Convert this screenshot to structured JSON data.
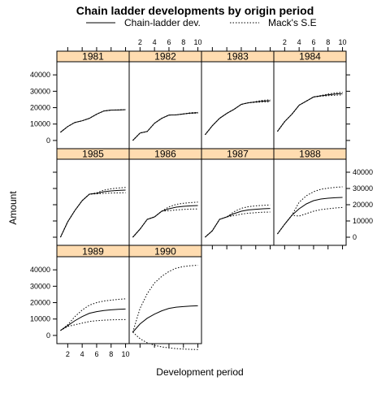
{
  "chart_data": {
    "type": "line",
    "title": "Chain ladder developments by origin period",
    "xlabel": "Development period",
    "ylabel": "Amount",
    "legend": {
      "placement": "top",
      "entries": [
        {
          "label": "Chain-ladder dev.",
          "line": "solid"
        },
        {
          "label": "Mack's S.E",
          "line": "dotted"
        }
      ]
    },
    "xlim": [
      0.5,
      10.5
    ],
    "ylim": [
      -5000,
      48000
    ],
    "x_ticks": [
      2,
      4,
      6,
      8,
      10
    ],
    "y_ticks": [
      0,
      10000,
      20000,
      30000,
      40000
    ],
    "strip_color": "#ffdcb0",
    "panels": [
      {
        "origin": "1981",
        "cl": [
          5000,
          8500,
          11000,
          12000,
          13500,
          16000,
          18000,
          18500,
          18600,
          18800
        ],
        "lower": [
          5000,
          8500,
          11000,
          12000,
          13500,
          16000,
          18000,
          18500,
          18600,
          18800
        ],
        "upper": [
          5000,
          8500,
          11000,
          12000,
          13500,
          16000,
          18000,
          18500,
          18600,
          18800
        ]
      },
      {
        "origin": "1982",
        "cl": [
          0,
          4500,
          5500,
          10500,
          13500,
          15500,
          15600,
          16200,
          16700,
          16900
        ],
        "lower": [
          0,
          4500,
          5500,
          10500,
          13500,
          15500,
          15600,
          16200,
          16500,
          16700
        ],
        "upper": [
          0,
          4500,
          5500,
          10500,
          13500,
          15500,
          15600,
          16200,
          16900,
          17100
        ]
      },
      {
        "origin": "1983",
        "cl": [
          3500,
          9000,
          13500,
          16500,
          19000,
          22000,
          23000,
          23500,
          24000,
          24200
        ],
        "lower": [
          3500,
          9000,
          13500,
          16500,
          19000,
          22000,
          23000,
          23300,
          23500,
          23600
        ],
        "upper": [
          3500,
          9000,
          13500,
          16500,
          19000,
          22000,
          23000,
          23700,
          24500,
          24800
        ]
      },
      {
        "origin": "1984",
        "cl": [
          5500,
          11500,
          16000,
          21500,
          24000,
          26500,
          27200,
          27800,
          28300,
          28600
        ],
        "lower": [
          5500,
          11500,
          16000,
          21500,
          24000,
          26500,
          27000,
          27300,
          27600,
          27800
        ],
        "upper": [
          5500,
          11500,
          16000,
          21500,
          24000,
          26500,
          27400,
          28300,
          29000,
          29400
        ]
      },
      {
        "origin": "1985",
        "cl": [
          0,
          9500,
          16500,
          22500,
          26500,
          27000,
          28000,
          28500,
          28800,
          29000
        ],
        "lower": [
          0,
          9500,
          16500,
          22500,
          26500,
          26700,
          27000,
          27200,
          27300,
          27400
        ],
        "upper": [
          0,
          9500,
          16500,
          22500,
          26500,
          27300,
          29000,
          29800,
          30300,
          30600
        ]
      },
      {
        "origin": "1986",
        "cl": [
          0,
          5000,
          11000,
          12500,
          16000,
          17500,
          18500,
          19000,
          19300,
          19500
        ],
        "lower": [
          0,
          5000,
          11000,
          12500,
          16000,
          16300,
          16800,
          17100,
          17300,
          17400
        ],
        "upper": [
          0,
          5000,
          11000,
          12500,
          16000,
          18700,
          20200,
          20900,
          21300,
          21600
        ]
      },
      {
        "origin": "1987",
        "cl": [
          0,
          4000,
          11000,
          12500,
          14500,
          16000,
          16800,
          17200,
          17500,
          17700
        ],
        "lower": [
          0,
          4000,
          11000,
          12500,
          13300,
          14200,
          14800,
          15100,
          15400,
          15500
        ],
        "upper": [
          0,
          4000,
          11000,
          12500,
          15700,
          17800,
          18800,
          19300,
          19600,
          19900
        ]
      },
      {
        "origin": "1988",
        "cl": [
          2000,
          8000,
          13500,
          17500,
          20500,
          22500,
          23500,
          24000,
          24300,
          24500
        ],
        "lower": [
          2000,
          8000,
          13500,
          13000,
          14500,
          16000,
          17000,
          17500,
          18000,
          18300
        ],
        "upper": [
          2000,
          8000,
          13500,
          21500,
          25500,
          28000,
          29500,
          30200,
          30700,
          31000
        ]
      },
      {
        "origin": "1989",
        "cl": [
          3000,
          6000,
          9000,
          11500,
          13500,
          14500,
          15200,
          15600,
          15900,
          16100
        ],
        "lower": [
          3000,
          5500,
          6500,
          7500,
          8500,
          9000,
          9300,
          9500,
          9600,
          9700
        ],
        "upper": [
          3000,
          6500,
          11500,
          15500,
          18500,
          20000,
          21000,
          21500,
          22000,
          22300
        ]
      },
      {
        "origin": "1990",
        "cl": [
          2000,
          7000,
          10500,
          13000,
          15000,
          16500,
          17200,
          17600,
          17900,
          18100
        ],
        "lower": [
          2000,
          -2000,
          -4500,
          -6000,
          -7000,
          -7600,
          -8000,
          -8300,
          -8500,
          -8600
        ],
        "upper": [
          2000,
          16500,
          25500,
          32000,
          36000,
          39000,
          41000,
          42000,
          42500,
          42800
        ]
      }
    ]
  }
}
